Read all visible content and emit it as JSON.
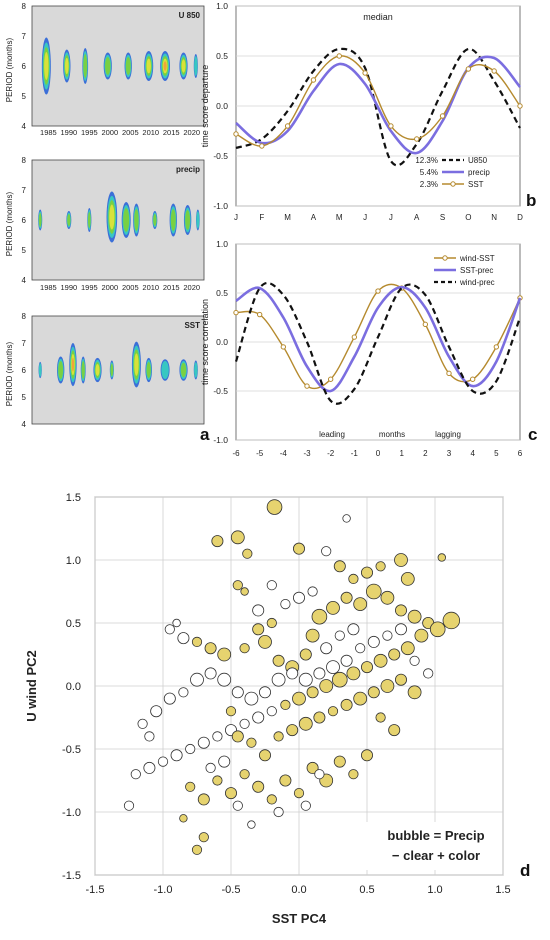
{
  "chart_data": [
    {
      "id": "a1",
      "type": "heatmap",
      "panel_letter": "a",
      "tag": "U 850",
      "ylabel": "PERIOD (months)",
      "ylim": [
        4,
        8
      ],
      "yticks": [
        "4",
        "5",
        "6",
        "7",
        "8"
      ],
      "xlim": [
        1981,
        2023
      ],
      "xticks": [
        "1985",
        "1990",
        "1995",
        "2000",
        "2005",
        "2010",
        "2015",
        "2020"
      ],
      "colors": [
        "#3b6fd8",
        "#38c7c2",
        "#79d043",
        "#d8e23a",
        "#f0a43a"
      ],
      "blobs": [
        {
          "x": 1984.5,
          "y": 6.0,
          "w": 2.2,
          "h": 1.9,
          "level": 3
        },
        {
          "x": 1989.5,
          "y": 6.0,
          "w": 1.8,
          "h": 1.1,
          "level": 3
        },
        {
          "x": 1994.0,
          "y": 6.0,
          "w": 1.4,
          "h": 1.2,
          "level": 2
        },
        {
          "x": 1999.5,
          "y": 6.0,
          "w": 2.0,
          "h": 0.9,
          "level": 2
        },
        {
          "x": 2004.5,
          "y": 6.0,
          "w": 1.8,
          "h": 0.9,
          "level": 2
        },
        {
          "x": 2009.5,
          "y": 6.0,
          "w": 2.2,
          "h": 1.0,
          "level": 3
        },
        {
          "x": 2013.5,
          "y": 6.0,
          "w": 2.4,
          "h": 1.0,
          "level": 4
        },
        {
          "x": 2018.0,
          "y": 6.0,
          "w": 2.0,
          "h": 0.9,
          "level": 3
        },
        {
          "x": 2021.0,
          "y": 6.0,
          "w": 1.0,
          "h": 0.8,
          "level": 1
        }
      ]
    },
    {
      "id": "a2",
      "type": "heatmap",
      "tag": "precip",
      "ylabel": "PERIOD (months)",
      "ylim": [
        4,
        8
      ],
      "yticks": [
        "4",
        "5",
        "6",
        "7",
        "8"
      ],
      "xlim": [
        1981,
        2023
      ],
      "xticks": [
        "1985",
        "1990",
        "1995",
        "2000",
        "2005",
        "2010",
        "2015",
        "2020"
      ],
      "colors": [
        "#3b6fd8",
        "#38c7c2",
        "#79d043",
        "#d8e23a",
        "#f0a43a"
      ],
      "blobs": [
        {
          "x": 1983.0,
          "y": 6.0,
          "w": 1.0,
          "h": 0.7,
          "level": 2
        },
        {
          "x": 1990.0,
          "y": 6.0,
          "w": 1.2,
          "h": 0.6,
          "level": 2
        },
        {
          "x": 1995.0,
          "y": 6.0,
          "w": 1.0,
          "h": 0.8,
          "level": 2
        },
        {
          "x": 2000.5,
          "y": 6.1,
          "w": 2.6,
          "h": 1.7,
          "level": 3
        },
        {
          "x": 2004.0,
          "y": 6.0,
          "w": 2.2,
          "h": 1.2,
          "level": 2
        },
        {
          "x": 2006.5,
          "y": 6.0,
          "w": 1.6,
          "h": 1.1,
          "level": 2
        },
        {
          "x": 2011.0,
          "y": 6.0,
          "w": 1.2,
          "h": 0.6,
          "level": 2
        },
        {
          "x": 2015.5,
          "y": 6.0,
          "w": 1.8,
          "h": 1.1,
          "level": 2
        },
        {
          "x": 2019.0,
          "y": 6.0,
          "w": 1.8,
          "h": 1.0,
          "level": 2
        },
        {
          "x": 2021.5,
          "y": 6.0,
          "w": 0.9,
          "h": 0.7,
          "level": 1
        }
      ]
    },
    {
      "id": "a3",
      "type": "heatmap",
      "tag": "SST",
      "ylabel": "PERIOD (months)",
      "ylim": [
        4,
        8
      ],
      "yticks": [
        "4",
        "5",
        "6",
        "7",
        "8"
      ],
      "xlim": [
        1981,
        2023
      ],
      "xticks": [],
      "colors": [
        "#3b6fd8",
        "#38c7c2",
        "#79d043",
        "#d8e23a",
        "#f0a43a"
      ],
      "blobs": [
        {
          "x": 1983.0,
          "y": 6.0,
          "w": 0.8,
          "h": 0.6,
          "level": 1
        },
        {
          "x": 1988.0,
          "y": 6.0,
          "w": 1.8,
          "h": 1.0,
          "level": 2
        },
        {
          "x": 1991.0,
          "y": 6.2,
          "w": 1.8,
          "h": 1.6,
          "level": 4
        },
        {
          "x": 1993.5,
          "y": 6.0,
          "w": 1.2,
          "h": 1.0,
          "level": 2
        },
        {
          "x": 1997.0,
          "y": 6.0,
          "w": 2.0,
          "h": 0.9,
          "level": 3
        },
        {
          "x": 2000.5,
          "y": 6.0,
          "w": 1.0,
          "h": 0.7,
          "level": 2
        },
        {
          "x": 2006.5,
          "y": 6.2,
          "w": 2.2,
          "h": 1.7,
          "level": 3
        },
        {
          "x": 2009.5,
          "y": 6.0,
          "w": 1.6,
          "h": 0.9,
          "level": 2
        },
        {
          "x": 2013.5,
          "y": 6.0,
          "w": 2.2,
          "h": 0.8,
          "level": 1
        },
        {
          "x": 2018.0,
          "y": 6.0,
          "w": 2.0,
          "h": 0.8,
          "level": 2
        },
        {
          "x": 2021.0,
          "y": 6.0,
          "w": 1.0,
          "h": 0.7,
          "level": 1
        }
      ]
    },
    {
      "id": "b",
      "type": "line",
      "panel_letter": "b",
      "title": "median",
      "ylabel": "time score departure",
      "ylim": [
        -1.0,
        1.0
      ],
      "yticks": [
        "-1.0",
        "-0.5",
        "0.0",
        "0.5",
        "1.0"
      ],
      "categories": [
        "J",
        "F",
        "M",
        "A",
        "M",
        "J",
        "J",
        "A",
        "S",
        "O",
        "N",
        "D"
      ],
      "series": [
        {
          "name": "U850",
          "pct": "12.3%",
          "color": "#111111",
          "dash": "6,4",
          "width": 2.2,
          "values": [
            -0.42,
            -0.33,
            -0.05,
            0.35,
            0.57,
            0.38,
            -0.55,
            -0.38,
            0.15,
            0.57,
            0.25,
            -0.22
          ]
        },
        {
          "name": "precip",
          "pct": "5.4%",
          "color": "#7b6ee0",
          "width": 2.6,
          "values": [
            -0.17,
            -0.37,
            -0.25,
            0.15,
            0.42,
            0.22,
            -0.25,
            -0.47,
            -0.15,
            0.38,
            0.48,
            0.19
          ]
        },
        {
          "name": "SST",
          "pct": "2.3%",
          "color": "#b58a2e",
          "width": 1.4,
          "marker": true,
          "values": [
            -0.28,
            -0.4,
            -0.2,
            0.26,
            0.5,
            0.33,
            -0.2,
            -0.33,
            -0.1,
            0.37,
            0.35,
            0.0
          ]
        }
      ]
    },
    {
      "id": "c",
      "type": "line",
      "panel_letter": "c",
      "ylabel": "time score correlation",
      "ylim": [
        -1.0,
        1.0
      ],
      "yticks": [
        "-1.0",
        "-0.5",
        "0.0",
        "0.5",
        "1.0"
      ],
      "categories": [
        "-6",
        "-5",
        "-4",
        "-3",
        "-2",
        "-1",
        "0",
        "1",
        "2",
        "3",
        "4",
        "5",
        "6"
      ],
      "annotations": {
        "leading": "leading",
        "months": "months",
        "lagging": "lagging"
      },
      "series": [
        {
          "name": "wind-SST",
          "color": "#b58a2e",
          "width": 1.4,
          "marker": true,
          "values": [
            0.3,
            0.28,
            -0.05,
            -0.45,
            -0.38,
            0.05,
            0.52,
            0.55,
            0.18,
            -0.32,
            -0.38,
            -0.05,
            0.45
          ]
        },
        {
          "name": "SST-prec",
          "color": "#7b6ee0",
          "width": 2.6,
          "values": [
            0.42,
            0.55,
            0.25,
            -0.25,
            -0.5,
            -0.15,
            0.35,
            0.56,
            0.35,
            -0.15,
            -0.45,
            -0.2,
            0.45
          ]
        },
        {
          "name": "wind-prec",
          "color": "#111111",
          "dash": "6,4",
          "width": 2.2,
          "values": [
            -0.2,
            0.55,
            0.48,
            0.0,
            -0.6,
            -0.48,
            0.05,
            0.55,
            0.48,
            -0.05,
            -0.5,
            -0.4,
            0.25
          ]
        }
      ]
    },
    {
      "id": "d",
      "type": "scatter",
      "panel_letter": "d",
      "xlabel": "SST PC4",
      "ylabel": "U wind PC2",
      "xlim": [
        -1.5,
        1.5
      ],
      "ylim": [
        -1.5,
        1.5
      ],
      "xticks": [
        "-1.5",
        "-1.0",
        "-0.5",
        "0.0",
        "0.5",
        "1.0",
        "1.5"
      ],
      "yticks": [
        "-1.5",
        "-1.0",
        "-0.5",
        "0.0",
        "0.5",
        "1.0",
        "1.5"
      ],
      "legend": {
        "line1": "bubble = Precip",
        "line2": "− clear   + color"
      },
      "fill_color": "#e6d36f",
      "points": [
        [
          -0.18,
          1.42,
          0.6
        ],
        [
          -0.6,
          1.15,
          0.4
        ],
        [
          -0.45,
          1.18,
          0.5
        ],
        [
          -0.38,
          1.05,
          0.3
        ],
        [
          0.0,
          1.09,
          0.4
        ],
        [
          0.35,
          1.33,
          -0.2
        ],
        [
          0.2,
          1.07,
          -0.3
        ],
        [
          -0.4,
          0.75,
          0.2
        ],
        [
          -0.45,
          0.8,
          0.3
        ],
        [
          0.75,
          1.0,
          0.5
        ],
        [
          1.05,
          1.02,
          0.2
        ],
        [
          -0.9,
          0.5,
          -0.2
        ],
        [
          -0.95,
          0.45,
          -0.3
        ],
        [
          -0.85,
          0.38,
          -0.4
        ],
        [
          -0.75,
          0.35,
          0.3
        ],
        [
          -0.65,
          0.3,
          0.4
        ],
        [
          -0.55,
          0.25,
          0.5
        ],
        [
          -0.4,
          0.3,
          0.3
        ],
        [
          -0.3,
          0.45,
          0.4
        ],
        [
          -0.2,
          0.5,
          0.3
        ],
        [
          -0.25,
          0.35,
          0.5
        ],
        [
          -0.15,
          0.2,
          0.4
        ],
        [
          -0.05,
          0.15,
          0.5
        ],
        [
          0.05,
          0.25,
          0.4
        ],
        [
          0.1,
          0.4,
          0.5
        ],
        [
          0.15,
          0.55,
          0.6
        ],
        [
          0.25,
          0.62,
          0.5
        ],
        [
          0.35,
          0.7,
          0.4
        ],
        [
          0.45,
          0.65,
          0.5
        ],
        [
          0.55,
          0.75,
          0.6
        ],
        [
          0.65,
          0.7,
          0.5
        ],
        [
          0.75,
          0.6,
          0.4
        ],
        [
          0.85,
          0.55,
          0.5
        ],
        [
          0.95,
          0.5,
          0.4
        ],
        [
          1.12,
          0.52,
          0.7
        ],
        [
          1.02,
          0.45,
          0.6
        ],
        [
          0.9,
          0.4,
          0.5
        ],
        [
          0.8,
          0.3,
          0.5
        ],
        [
          0.7,
          0.25,
          0.4
        ],
        [
          0.6,
          0.2,
          0.5
        ],
        [
          0.5,
          0.15,
          0.4
        ],
        [
          0.4,
          0.1,
          0.5
        ],
        [
          0.3,
          0.05,
          0.6
        ],
        [
          0.2,
          0.0,
          0.5
        ],
        [
          0.1,
          -0.05,
          0.4
        ],
        [
          0.0,
          -0.1,
          0.5
        ],
        [
          -0.1,
          -0.15,
          0.3
        ],
        [
          -0.2,
          -0.2,
          -0.3
        ],
        [
          -0.3,
          -0.25,
          -0.4
        ],
        [
          -0.4,
          -0.3,
          -0.3
        ],
        [
          -0.5,
          -0.35,
          -0.4
        ],
        [
          -0.6,
          -0.4,
          -0.3
        ],
        [
          -0.7,
          -0.45,
          -0.4
        ],
        [
          -0.8,
          -0.5,
          -0.3
        ],
        [
          -0.9,
          -0.55,
          -0.4
        ],
        [
          -1.0,
          -0.6,
          -0.3
        ],
        [
          -1.1,
          -0.65,
          -0.4
        ],
        [
          -1.2,
          -0.7,
          -0.3
        ],
        [
          -1.25,
          -0.95,
          -0.3
        ],
        [
          -1.15,
          -0.3,
          -0.3
        ],
        [
          -1.1,
          -0.4,
          -0.3
        ],
        [
          -1.05,
          -0.2,
          -0.4
        ],
        [
          -0.95,
          -0.1,
          -0.4
        ],
        [
          -0.85,
          -0.05,
          -0.3
        ],
        [
          -0.75,
          0.05,
          -0.5
        ],
        [
          -0.65,
          0.1,
          -0.4
        ],
        [
          -0.55,
          0.05,
          -0.5
        ],
        [
          -0.45,
          -0.05,
          -0.4
        ],
        [
          -0.35,
          -0.1,
          -0.5
        ],
        [
          -0.25,
          -0.05,
          -0.4
        ],
        [
          -0.15,
          0.05,
          -0.5
        ],
        [
          -0.05,
          0.1,
          -0.4
        ],
        [
          0.05,
          0.05,
          -0.5
        ],
        [
          0.15,
          0.1,
          -0.4
        ],
        [
          0.25,
          0.15,
          -0.5
        ],
        [
          0.35,
          0.2,
          -0.4
        ],
        [
          0.45,
          0.3,
          -0.3
        ],
        [
          0.55,
          0.35,
          -0.4
        ],
        [
          0.65,
          0.4,
          -0.3
        ],
        [
          0.75,
          0.45,
          -0.4
        ],
        [
          0.85,
          0.2,
          -0.3
        ],
        [
          0.95,
          0.1,
          -0.3
        ],
        [
          -0.8,
          -0.8,
          0.3
        ],
        [
          -0.7,
          -0.9,
          0.4
        ],
        [
          -0.6,
          -0.75,
          0.3
        ],
        [
          -0.5,
          -0.85,
          0.4
        ],
        [
          -0.4,
          -0.7,
          0.3
        ],
        [
          -0.3,
          -0.8,
          0.4
        ],
        [
          -0.2,
          -0.9,
          0.3
        ],
        [
          -0.1,
          -0.75,
          0.4
        ],
        [
          0.0,
          -0.85,
          0.3
        ],
        [
          0.1,
          -0.65,
          0.4
        ],
        [
          0.2,
          -0.75,
          0.5
        ],
        [
          0.3,
          -0.6,
          0.4
        ],
        [
          0.4,
          -0.7,
          0.3
        ],
        [
          0.5,
          -0.55,
          0.4
        ],
        [
          -0.75,
          -1.3,
          0.3
        ],
        [
          -0.7,
          -1.2,
          0.3
        ],
        [
          -0.85,
          -1.05,
          0.2
        ],
        [
          0.15,
          -0.7,
          -0.3
        ],
        [
          0.05,
          -0.95,
          -0.3
        ],
        [
          -0.15,
          -1.0,
          -0.3
        ],
        [
          -0.35,
          -1.1,
          -0.2
        ],
        [
          -0.45,
          -0.95,
          -0.3
        ],
        [
          -0.55,
          -0.6,
          -0.4
        ],
        [
          -0.65,
          -0.65,
          -0.3
        ],
        [
          -0.5,
          -0.2,
          0.3
        ],
        [
          -0.45,
          -0.4,
          0.4
        ],
        [
          -0.35,
          -0.45,
          0.3
        ],
        [
          -0.25,
          -0.55,
          0.4
        ],
        [
          -0.15,
          -0.4,
          0.3
        ],
        [
          -0.05,
          -0.35,
          0.4
        ],
        [
          0.05,
          -0.3,
          0.5
        ],
        [
          0.15,
          -0.25,
          0.4
        ],
        [
          0.25,
          -0.2,
          0.3
        ],
        [
          0.35,
          -0.15,
          0.4
        ],
        [
          0.45,
          -0.1,
          0.5
        ],
        [
          0.55,
          -0.05,
          0.4
        ],
        [
          0.65,
          0.0,
          0.5
        ],
        [
          0.75,
          0.05,
          0.4
        ],
        [
          0.85,
          -0.05,
          0.5
        ],
        [
          0.7,
          -0.35,
          0.4
        ],
        [
          0.6,
          -0.25,
          0.3
        ],
        [
          0.8,
          0.85,
          0.5
        ],
        [
          0.5,
          0.9,
          0.4
        ],
        [
          0.4,
          0.85,
          0.3
        ],
        [
          0.3,
          0.95,
          0.4
        ],
        [
          0.6,
          0.95,
          0.3
        ],
        [
          -0.1,
          0.65,
          -0.3
        ],
        [
          0.0,
          0.7,
          -0.4
        ],
        [
          0.1,
          0.75,
          -0.3
        ],
        [
          -0.3,
          0.6,
          -0.4
        ],
        [
          -0.2,
          0.8,
          -0.3
        ],
        [
          0.2,
          0.3,
          -0.4
        ],
        [
          0.3,
          0.4,
          -0.3
        ],
        [
          0.4,
          0.45,
          -0.4
        ]
      ]
    }
  ]
}
